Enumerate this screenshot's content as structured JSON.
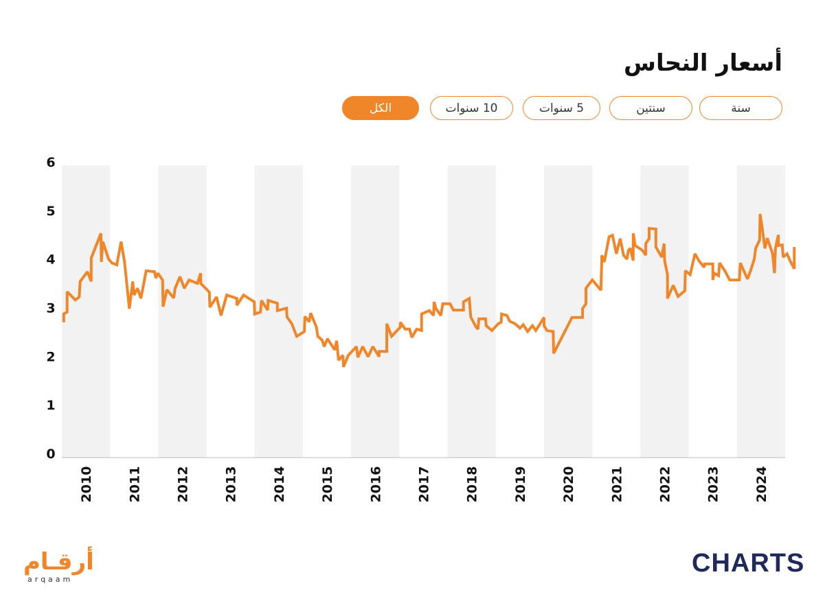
{
  "chart_data": {
    "type": "line",
    "title": "أسعار النحاس",
    "color": "#f0862a",
    "bands": true,
    "range_buttons": [
      "سنة",
      "سنتين",
      "5 سنوات",
      "10 سنوات",
      "الكل"
    ],
    "active_button": 4,
    "xlim": [
      2010,
      2025.2
    ],
    "ylim": [
      0,
      6
    ],
    "xticks": [
      2010,
      2011,
      2012,
      2013,
      2014,
      2015,
      2016,
      2017,
      2018,
      2019,
      2020,
      2021,
      2022,
      2023,
      2024
    ],
    "yticks": [
      0,
      1,
      2,
      3,
      4,
      5,
      6
    ],
    "x": [
      2010.04,
      2010.04,
      2010.11,
      2010.11,
      2010.28,
      2010.36,
      2010.38,
      2010.53,
      2010.61,
      2010.61,
      2010.81,
      2010.82,
      2010.85,
      2010.97,
      2011.04,
      2011.14,
      2011.23,
      2011.3,
      2011.4,
      2011.47,
      2011.5,
      2011.57,
      2011.64,
      2011.75,
      2011.92,
      2011.95,
      2011.99,
      2012.09,
      2012.1,
      2012.18,
      2012.32,
      2012.35,
      2012.45,
      2012.54,
      2012.64,
      2012.81,
      2012.88,
      2012.88,
      2013.06,
      2013.07,
      2013.21,
      2013.3,
      2013.42,
      2013.63,
      2013.63,
      2013.77,
      2013.99,
      2014.0,
      2014.12,
      2014.14,
      2014.27,
      2014.28,
      2014.47,
      2014.47,
      2014.66,
      2014.67,
      2014.77,
      2014.87,
      2015.03,
      2015.04,
      2015.13,
      2015.16,
      2015.28,
      2015.31,
      2015.4,
      2015.44,
      2015.51,
      2015.66,
      2015.7,
      2015.74,
      2015.83,
      2015.84,
      2015.94,
      2016.11,
      2016.14,
      2016.24,
      2016.35,
      2016.45,
      2016.58,
      2016.58,
      2016.74,
      2016.74,
      2016.84,
      2017.02,
      2017.02,
      2017.12,
      2017.21,
      2017.26,
      2017.36,
      2017.46,
      2017.46,
      2017.62,
      2017.71,
      2017.72,
      2017.76,
      2017.86,
      2017.9,
      2018.05,
      2018.12,
      2018.33,
      2018.33,
      2018.45,
      2018.48,
      2018.59,
      2018.63,
      2018.65,
      2018.79,
      2018.8,
      2018.92,
      2019.05,
      2019.11,
      2019.12,
      2019.23,
      2019.29,
      2019.4,
      2019.5,
      2019.57,
      2019.66,
      2019.76,
      2019.83,
      2020.0,
      2020.0,
      2020.06,
      2020.19,
      2020.2,
      2020.58,
      2020.8,
      2020.8,
      2020.87,
      2020.87,
      2021.0,
      2021.18,
      2021.2,
      2021.25,
      2021.35,
      2021.42,
      2021.5,
      2021.58,
      2021.65,
      2021.72,
      2021.75,
      2021.79,
      2021.85,
      2021.85,
      2021.89,
      2022.04,
      2022.11,
      2022.11,
      2022.18,
      2022.18,
      2022.32,
      2022.32,
      2022.44,
      2022.49,
      2022.5,
      2022.56,
      2022.56,
      2022.68,
      2022.78,
      2022.92,
      2022.93,
      2023.03,
      2023.13,
      2023.21,
      2023.32,
      2023.33,
      2023.5,
      2023.5,
      2023.53,
      2023.62,
      2023.64,
      2023.75,
      2023.85,
      2024.05,
      2024.07,
      2024.22,
      2024.29,
      2024.36,
      2024.39,
      2024.47,
      2024.48,
      2024.53,
      2024.58,
      2024.63,
      2024.74,
      2024.78,
      2024.8,
      2024.86,
      2024.86,
      2024.94,
      2024.96,
      2025.04,
      2025.1,
      2025.19,
      2025.19
    ],
    "values": [
      2.7,
      2.87,
      2.91,
      3.33,
      3.16,
      3.22,
      3.54,
      3.74,
      3.54,
      4.02,
      4.53,
      3.94,
      4.36,
      4.0,
      3.92,
      3.88,
      4.36,
      3.94,
      2.98,
      3.54,
      3.26,
      3.4,
      3.19,
      3.76,
      3.74,
      3.61,
      3.71,
      3.57,
      3.02,
      3.37,
      3.2,
      3.4,
      3.64,
      3.4,
      3.57,
      3.5,
      3.71,
      3.5,
      3.32,
      3.01,
      3.22,
      2.84,
      3.26,
      3.19,
      3.05,
      3.26,
      3.12,
      2.87,
      2.91,
      3.15,
      2.95,
      3.15,
      3.09,
      2.94,
      2.99,
      2.81,
      2.67,
      2.41,
      2.51,
      2.82,
      2.71,
      2.89,
      2.6,
      2.41,
      2.33,
      2.2,
      2.36,
      2.13,
      2.32,
      1.92,
      2.02,
      1.78,
      2.02,
      2.2,
      1.98,
      2.2,
      1.99,
      2.2,
      1.99,
      2.1,
      2.1,
      2.67,
      2.41,
      2.6,
      2.7,
      2.56,
      2.56,
      2.39,
      2.56,
      2.53,
      2.87,
      2.94,
      2.84,
      3.12,
      2.98,
      2.84,
      3.08,
      3.08,
      2.95,
      2.95,
      3.12,
      3.19,
      2.81,
      2.6,
      2.56,
      2.77,
      2.77,
      2.63,
      2.53,
      2.67,
      2.7,
      2.87,
      2.84,
      2.72,
      2.67,
      2.58,
      2.65,
      2.51,
      2.63,
      2.53,
      2.8,
      2.63,
      2.53,
      2.51,
      2.06,
      2.8,
      2.8,
      2.98,
      3.08,
      3.4,
      3.57,
      3.36,
      4.08,
      3.94,
      4.46,
      4.49,
      4.11,
      4.42,
      4.08,
      4.0,
      4.18,
      4.22,
      3.97,
      4.53,
      4.28,
      4.18,
      4.08,
      4.32,
      4.42,
      4.63,
      4.62,
      4.25,
      4.04,
      4.32,
      3.97,
      3.68,
      3.19,
      3.46,
      3.23,
      3.35,
      3.76,
      3.68,
      4.11,
      3.97,
      3.83,
      3.9,
      3.9,
      3.57,
      3.71,
      3.66,
      3.92,
      3.76,
      3.57,
      3.57,
      3.92,
      3.59,
      3.78,
      4.0,
      4.22,
      4.39,
      4.93,
      4.6,
      4.22,
      4.43,
      4.11,
      3.71,
      4.22,
      4.5,
      4.28,
      4.29,
      4.04,
      4.11,
      3.97,
      3.8,
      4.25
    ]
  },
  "logos": {
    "arqaam": "أرقـام",
    "arqaam_latin": "arqaam",
    "charts": "CHARTS"
  }
}
